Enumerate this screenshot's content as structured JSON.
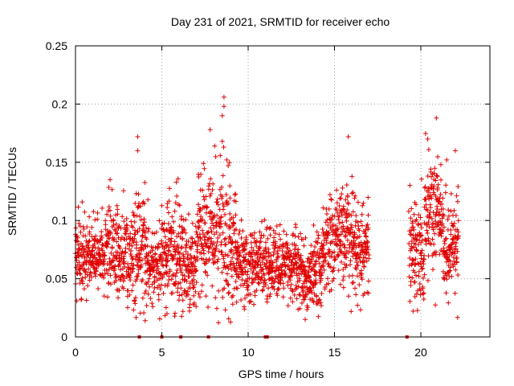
{
  "chart_data": {
    "type": "scatter",
    "title": "Day 231 of 2021, SRMTID for receiver echo",
    "xlabel": "GPS time / hours",
    "ylabel": "SRMTID / TECUs",
    "xlim": [
      0,
      24
    ],
    "ylim": [
      0,
      0.25
    ],
    "xticks": [
      0,
      5,
      10,
      15,
      20
    ],
    "xtick_labels": [
      "0",
      "5",
      "10",
      "15",
      "20"
    ],
    "yticks": [
      0,
      0.05,
      0.1,
      0.15,
      0.2,
      0.25
    ],
    "ytick_labels": [
      "0",
      "0.05",
      "0.1",
      "0.15",
      "0.2",
      "0.25"
    ],
    "grid": true,
    "marker": "+",
    "color": "#e00000",
    "zero_points_x": [
      3.7,
      5.0,
      6.1,
      7.7,
      11.0,
      11.1,
      19.2
    ],
    "segments": [
      {
        "x_start": 0.0,
        "x_end": 1.5,
        "mean": 0.068,
        "sd": 0.015
      },
      {
        "x_start": 1.5,
        "x_end": 2.5,
        "mean": 0.078,
        "sd": 0.022
      },
      {
        "x_start": 2.5,
        "x_end": 3.3,
        "mean": 0.07,
        "sd": 0.02
      },
      {
        "x_start": 3.3,
        "x_end": 4.2,
        "mean": 0.075,
        "sd": 0.025
      },
      {
        "x_start": 4.2,
        "x_end": 5.0,
        "mean": 0.06,
        "sd": 0.015
      },
      {
        "x_start": 5.0,
        "x_end": 6.2,
        "mean": 0.075,
        "sd": 0.025
      },
      {
        "x_start": 6.2,
        "x_end": 7.0,
        "mean": 0.06,
        "sd": 0.018
      },
      {
        "x_start": 7.0,
        "x_end": 8.0,
        "mean": 0.088,
        "sd": 0.022
      },
      {
        "x_start": 8.0,
        "x_end": 9.3,
        "mean": 0.085,
        "sd": 0.028
      },
      {
        "x_start": 9.3,
        "x_end": 13.0,
        "mean": 0.062,
        "sd": 0.015
      },
      {
        "x_start": 13.0,
        "x_end": 14.3,
        "mean": 0.055,
        "sd": 0.017
      },
      {
        "x_start": 14.3,
        "x_end": 16.2,
        "mean": 0.082,
        "sd": 0.02
      },
      {
        "x_start": 16.2,
        "x_end": 17.0,
        "mean": 0.075,
        "sd": 0.02
      },
      {
        "x_start": 19.3,
        "x_end": 20.2,
        "mean": 0.075,
        "sd": 0.022
      },
      {
        "x_start": 20.2,
        "x_end": 21.3,
        "mean": 0.112,
        "sd": 0.025
      },
      {
        "x_start": 21.3,
        "x_end": 22.2,
        "mean": 0.075,
        "sd": 0.022
      }
    ],
    "notable_points": [
      {
        "x": 3.6,
        "y": 0.172
      },
      {
        "x": 3.6,
        "y": 0.16
      },
      {
        "x": 8.6,
        "y": 0.206
      },
      {
        "x": 8.6,
        "y": 0.198
      },
      {
        "x": 8.5,
        "y": 0.19
      },
      {
        "x": 7.8,
        "y": 0.178
      },
      {
        "x": 8.5,
        "y": 0.168
      },
      {
        "x": 15.8,
        "y": 0.172
      },
      {
        "x": 20.9,
        "y": 0.188
      },
      {
        "x": 20.4,
        "y": 0.17
      },
      {
        "x": 21.5,
        "y": 0.152
      },
      {
        "x": 22.0,
        "y": 0.16
      },
      {
        "x": 13.3,
        "y": 0.015
      },
      {
        "x": 5.3,
        "y": 0.02
      }
    ]
  }
}
